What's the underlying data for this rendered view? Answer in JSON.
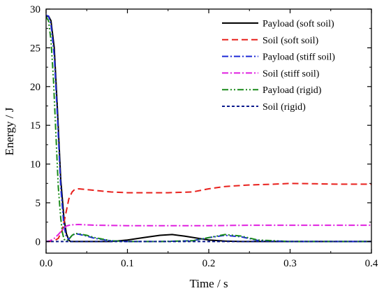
{
  "chart_data": {
    "type": "line",
    "title": "",
    "xlabel": "Time / s",
    "ylabel": "Energy / J",
    "xlim": [
      0,
      0.4
    ],
    "ylim": [
      -1.5,
      30
    ],
    "xticks": [
      0.0,
      0.1,
      0.2,
      0.3,
      0.4
    ],
    "xtick_labels": [
      "0.0",
      "0.1",
      "0.2",
      "0.3",
      "0.4"
    ],
    "yticks": [
      0,
      5,
      10,
      15,
      20,
      25,
      30
    ],
    "ytick_labels": [
      "0",
      "5",
      "10",
      "15",
      "20",
      "25",
      "30"
    ],
    "grid": false,
    "legend_position": "top-right",
    "series": [
      {
        "name": "Payload (soft soil)",
        "color": "#000000",
        "dash": "solid",
        "x": [
          0,
          0.003,
          0.006,
          0.01,
          0.014,
          0.018,
          0.022,
          0.025,
          0.028,
          0.03,
          0.035,
          0.05,
          0.08,
          0.1,
          0.12,
          0.14,
          0.155,
          0.17,
          0.2,
          0.22,
          0.24,
          0.28,
          0.3,
          0.4
        ],
        "y": [
          29,
          29.1,
          28.5,
          25,
          17,
          8,
          3,
          1,
          0.2,
          0,
          0,
          0,
          0,
          0.2,
          0.5,
          0.8,
          0.9,
          0.7,
          0.2,
          0.05,
          0,
          0,
          0,
          0
        ]
      },
      {
        "name": "Soil (soft soil)",
        "color": "#e8201c",
        "dash": "9,5",
        "x": [
          0,
          0.005,
          0.01,
          0.015,
          0.02,
          0.024,
          0.028,
          0.032,
          0.035,
          0.04,
          0.06,
          0.08,
          0.1,
          0.12,
          0.15,
          0.18,
          0.2,
          0.22,
          0.25,
          0.28,
          0.3,
          0.33,
          0.36,
          0.4
        ],
        "y": [
          0,
          0,
          0.1,
          0.4,
          1.5,
          3.5,
          5.5,
          6.4,
          6.7,
          6.8,
          6.6,
          6.4,
          6.3,
          6.3,
          6.3,
          6.4,
          6.8,
          7.1,
          7.3,
          7.4,
          7.5,
          7.45,
          7.4,
          7.4
        ]
      },
      {
        "name": "Payload (stiff soil)",
        "color": "#1f2bd6",
        "dash": "9,3,2,3",
        "x": [
          0,
          0.003,
          0.006,
          0.01,
          0.014,
          0.018,
          0.022,
          0.025,
          0.028,
          0.032,
          0.036,
          0.04,
          0.05,
          0.06,
          0.08,
          0.1,
          0.14,
          0.18,
          0.2,
          0.22,
          0.24,
          0.26,
          0.3,
          0.4
        ],
        "y": [
          29.2,
          29.1,
          28,
          24,
          16,
          7,
          2,
          0.6,
          0.3,
          0.8,
          1.0,
          0.95,
          0.7,
          0.4,
          0.1,
          0,
          0,
          0.1,
          0.5,
          0.8,
          0.6,
          0.15,
          0,
          0
        ]
      },
      {
        "name": "Soil (stiff soil)",
        "color": "#e020e0",
        "dash": "9,3,2,3",
        "x": [
          0,
          0.005,
          0.01,
          0.015,
          0.02,
          0.025,
          0.03,
          0.04,
          0.06,
          0.1,
          0.15,
          0.2,
          0.25,
          0.3,
          0.35,
          0.4
        ],
        "y": [
          0,
          0.1,
          0.4,
          0.9,
          1.5,
          2.0,
          2.15,
          2.2,
          2.1,
          2.05,
          2.05,
          2.05,
          2.1,
          2.1,
          2.1,
          2.1
        ]
      },
      {
        "name": "Payload (rigid)",
        "color": "#1a8a1a",
        "dash": "9,3,2,3,2,3",
        "x": [
          0,
          0.003,
          0.006,
          0.009,
          0.012,
          0.015,
          0.018,
          0.02,
          0.022,
          0.025,
          0.028,
          0.032,
          0.036,
          0.04,
          0.05,
          0.06,
          0.08,
          0.1,
          0.14,
          0.18,
          0.2,
          0.22,
          0.24,
          0.26,
          0.3,
          0.4
        ],
        "y": [
          29,
          28.5,
          26,
          21,
          14,
          7,
          3,
          1.2,
          0.3,
          0.1,
          0.3,
          0.8,
          1.05,
          1.0,
          0.8,
          0.5,
          0.1,
          0,
          0,
          0.1,
          0.5,
          0.9,
          0.7,
          0.2,
          0,
          0
        ]
      },
      {
        "name": "Soil (rigid)",
        "color": "#0a1a8c",
        "dash": "4,3",
        "x": [
          0,
          0.1,
          0.2,
          0.3,
          0.4
        ],
        "y": [
          0,
          0,
          0,
          0,
          0
        ]
      }
    ]
  }
}
